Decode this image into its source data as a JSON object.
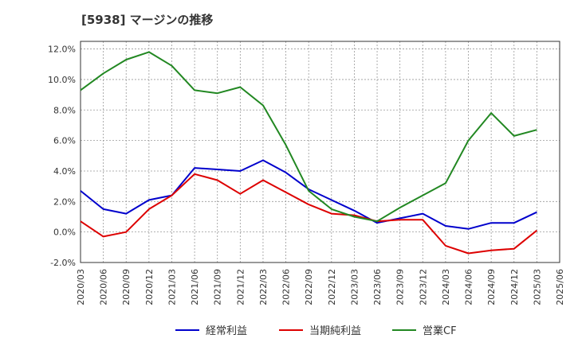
{
  "title": "[5938]  マージンの推移",
  "chart_data": {
    "type": "line",
    "title": "[5938]  マージンの推移",
    "xlabel": "",
    "ylabel": "",
    "categories": [
      "2020/03",
      "2020/06",
      "2020/09",
      "2020/12",
      "2021/03",
      "2021/06",
      "2021/09",
      "2021/12",
      "2022/03",
      "2022/06",
      "2022/09",
      "2022/12",
      "2023/03",
      "2023/06",
      "2023/09",
      "2023/12",
      "2024/03",
      "2024/06",
      "2024/09",
      "2024/12",
      "2025/03",
      "2025/06"
    ],
    "y_ticks": [
      "12.0%",
      "10.0%",
      "8.0%",
      "6.0%",
      "4.0%",
      "2.0%",
      "0.0%",
      "-2.0%"
    ],
    "ylim": [
      -2.0,
      12.5
    ],
    "grid": true,
    "legend_position": "bottom",
    "series": [
      {
        "name": "経常利益",
        "color": "#0000cc",
        "values": [
          2.7,
          1.5,
          1.2,
          2.1,
          2.4,
          4.2,
          4.1,
          4.0,
          4.7,
          3.9,
          2.8,
          2.1,
          1.4,
          0.6,
          0.9,
          1.2,
          0.4,
          0.2,
          0.6,
          0.6,
          1.3,
          null
        ]
      },
      {
        "name": "当期純利益",
        "color": "#dd0000",
        "values": [
          0.7,
          -0.3,
          0.0,
          1.5,
          2.4,
          3.8,
          3.4,
          2.5,
          3.4,
          2.6,
          1.8,
          1.2,
          1.1,
          0.7,
          0.8,
          0.8,
          -0.9,
          -1.4,
          -1.2,
          -1.1,
          0.1,
          null
        ]
      },
      {
        "name": "営業CF",
        "color": "#228822",
        "values": [
          9.3,
          10.4,
          11.3,
          11.8,
          10.9,
          9.3,
          9.1,
          9.5,
          8.3,
          5.7,
          2.7,
          1.5,
          1.0,
          0.7,
          1.6,
          2.4,
          3.2,
          6.0,
          7.8,
          6.3,
          6.7,
          null
        ]
      }
    ]
  }
}
